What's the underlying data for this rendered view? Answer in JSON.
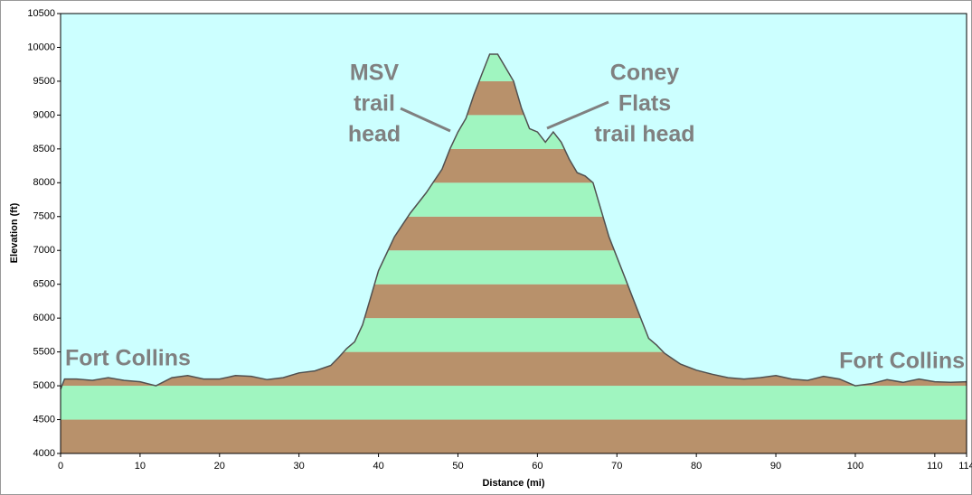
{
  "chart_data": {
    "type": "area",
    "xlabel": "Distance  (mi)",
    "ylabel": "Elevation (ft)",
    "x": [
      0,
      0.5,
      2,
      4,
      6,
      8,
      10,
      12,
      14,
      16,
      18,
      20,
      22,
      24,
      26,
      28,
      30,
      32,
      34,
      35,
      36,
      37,
      38,
      39,
      40,
      41,
      42,
      44,
      46,
      48,
      49,
      50,
      51,
      52,
      53,
      54,
      55,
      56,
      57,
      58,
      59,
      60,
      61,
      62,
      63,
      64,
      65,
      66,
      67,
      68,
      69,
      70,
      71,
      72,
      73,
      74,
      75,
      76,
      77,
      78,
      80,
      82,
      84,
      86,
      88,
      90,
      92,
      94,
      96,
      98,
      100,
      102,
      104,
      106,
      108,
      110,
      112,
      114
    ],
    "values": [
      4950,
      5100,
      5100,
      5080,
      5120,
      5080,
      5060,
      5000,
      5120,
      5150,
      5100,
      5100,
      5150,
      5140,
      5090,
      5120,
      5190,
      5220,
      5300,
      5420,
      5550,
      5650,
      5900,
      6300,
      6700,
      6950,
      7200,
      7550,
      7850,
      8200,
      8500,
      8750,
      8950,
      9300,
      9600,
      9900,
      9900,
      9700,
      9500,
      9100,
      8800,
      8750,
      8600,
      8750,
      8600,
      8350,
      8150,
      8100,
      8000,
      7600,
      7200,
      6900,
      6600,
      6300,
      6000,
      5700,
      5600,
      5480,
      5400,
      5320,
      5230,
      5170,
      5120,
      5100,
      5120,
      5150,
      5100,
      5080,
      5140,
      5100,
      5000,
      5030,
      5090,
      5050,
      5100,
      5060,
      5050,
      5060
    ],
    "xlim": [
      0,
      114
    ],
    "xticks": [
      0,
      10,
      20,
      30,
      40,
      50,
      60,
      70,
      80,
      90,
      100,
      110,
      114
    ],
    "ylim": [
      4000,
      10500
    ],
    "yticks": [
      4000,
      4500,
      5000,
      5500,
      6000,
      6500,
      7000,
      7500,
      8000,
      8500,
      9000,
      9500,
      10000,
      10500
    ],
    "band_colors": [
      "#b8916b",
      "#a0f5c0"
    ],
    "line_color": "#505050",
    "background": "#ccffff",
    "annotations": [
      {
        "lines": [
          "Fort Collins"
        ]
      },
      {
        "lines": [
          "MSV",
          "trail",
          "head"
        ]
      },
      {
        "lines": [
          "Coney",
          "Flats",
          "trail head"
        ]
      },
      {
        "lines": [
          "Fort Collins"
        ]
      }
    ]
  }
}
